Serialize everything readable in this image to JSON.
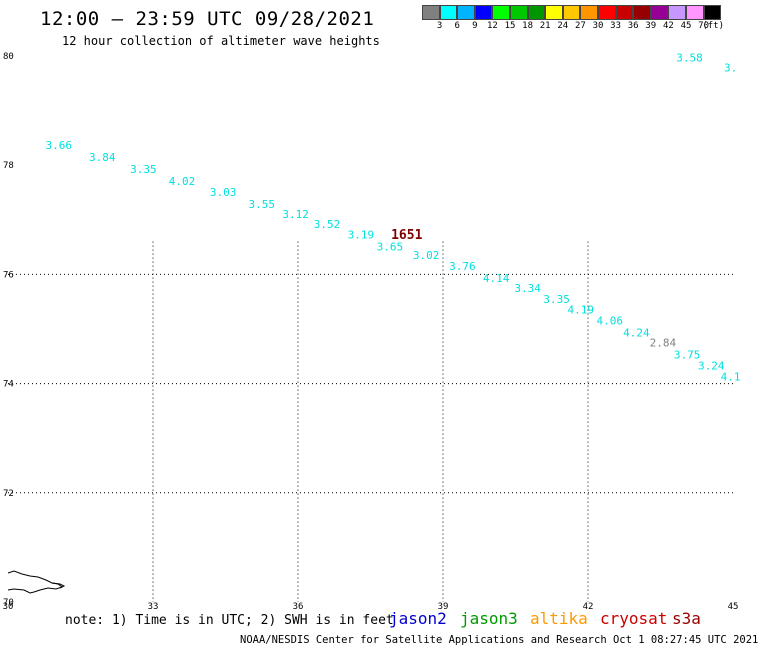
{
  "header": {
    "title": "12:00 – 23:59 UTC 09/28/2021",
    "subtitle": "12 hour collection of altimeter wave heights"
  },
  "colorbar": {
    "colors": [
      "#808080",
      "#00ffff",
      "#00b4ff",
      "#0000ff",
      "#00ff00",
      "#00c800",
      "#009600",
      "#ffff00",
      "#ffc800",
      "#ff9600",
      "#ff0000",
      "#c80000",
      "#960000",
      "#960096",
      "#c896ff",
      "#ff96ff",
      "#000000"
    ],
    "labels": [
      "3",
      "6",
      "9",
      "12",
      "15",
      "18",
      "21",
      "24",
      "27",
      "30",
      "33",
      "36",
      "39",
      "42",
      "45",
      "70",
      "(ft)"
    ]
  },
  "axes": {
    "lon_labels": [
      "30",
      "33",
      "36",
      "39",
      "42",
      "45"
    ],
    "lat_labels": [
      "70",
      "72",
      "74",
      "76",
      "78",
      "80"
    ]
  },
  "chart_data": {
    "type": "scatter",
    "xlim": [
      30,
      45
    ],
    "ylim": [
      70,
      80
    ],
    "grid": true,
    "points": [
      {
        "lon": 31.05,
        "lat": 78.3,
        "v": "3.66",
        "color": "#00e0e0"
      },
      {
        "lon": 31.95,
        "lat": 78.08,
        "v": "3.84",
        "color": "#00e0e0"
      },
      {
        "lon": 32.8,
        "lat": 77.86,
        "v": "3.35",
        "color": "#00e0e0"
      },
      {
        "lon": 33.6,
        "lat": 77.64,
        "v": "4.02",
        "color": "#00e0e0"
      },
      {
        "lon": 34.45,
        "lat": 77.44,
        "v": "3.03",
        "color": "#00e0e0"
      },
      {
        "lon": 35.25,
        "lat": 77.22,
        "v": "3.55",
        "color": "#00e0e0"
      },
      {
        "lon": 35.95,
        "lat": 77.03,
        "v": "3.12",
        "color": "#00e0e0"
      },
      {
        "lon": 36.6,
        "lat": 76.85,
        "v": "3.52",
        "color": "#00e0e0"
      },
      {
        "lon": 37.3,
        "lat": 76.66,
        "v": "3.19",
        "color": "#00e0e0"
      },
      {
        "lon": 37.9,
        "lat": 76.44,
        "v": "3.65",
        "color": "#00e0e0"
      },
      {
        "lon": 38.65,
        "lat": 76.28,
        "v": "3.02",
        "color": "#00e0e0"
      },
      {
        "lon": 39.4,
        "lat": 76.08,
        "v": "3.76",
        "color": "#00e0e0"
      },
      {
        "lon": 40.1,
        "lat": 75.86,
        "v": "4.14",
        "color": "#00e0e0"
      },
      {
        "lon": 40.75,
        "lat": 75.68,
        "v": "3.34",
        "color": "#00e0e0"
      },
      {
        "lon": 41.35,
        "lat": 75.48,
        "v": "3.35",
        "color": "#00e0e0"
      },
      {
        "lon": 41.85,
        "lat": 75.28,
        "v": "4.19",
        "color": "#00e0e0"
      },
      {
        "lon": 42.45,
        "lat": 75.08,
        "v": "4.06",
        "color": "#00e0e0"
      },
      {
        "lon": 43.0,
        "lat": 74.86,
        "v": "4.24",
        "color": "#00e0e0"
      },
      {
        "lon": 43.55,
        "lat": 74.68,
        "v": "2.84",
        "color": "#808080"
      },
      {
        "lon": 44.05,
        "lat": 74.46,
        "v": "3.75",
        "color": "#00e0e0"
      },
      {
        "lon": 44.55,
        "lat": 74.26,
        "v": "3.24",
        "color": "#00e0e0"
      },
      {
        "lon": 44.95,
        "lat": 74.06,
        "v": "4.1",
        "color": "#00e0e0"
      },
      {
        "lon": 44.1,
        "lat": 79.9,
        "v": "3.58",
        "color": "#00e0e0"
      },
      {
        "lon": 44.95,
        "lat": 79.72,
        "v": "3.",
        "color": "#00e0e0"
      }
    ],
    "annotations": [
      {
        "lon": 38.25,
        "lat": 76.65,
        "text": "1651",
        "color": "#800000"
      }
    ]
  },
  "note": "note: 1) Time is in UTC; 2) SWH is in feet",
  "satellites": [
    {
      "name": "jason2",
      "color": "#0000cc"
    },
    {
      "name": "jason3",
      "color": "#009900"
    },
    {
      "name": "altika",
      "color": "#ff9900"
    },
    {
      "name": "cryosat",
      "color": "#cc0000"
    },
    {
      "name": "s3a",
      "color": "#990000"
    }
  ],
  "footer": "NOAA/NESDIS Center for Satellite Applications and Research   Oct  1 08:27:45 UTC 2021"
}
